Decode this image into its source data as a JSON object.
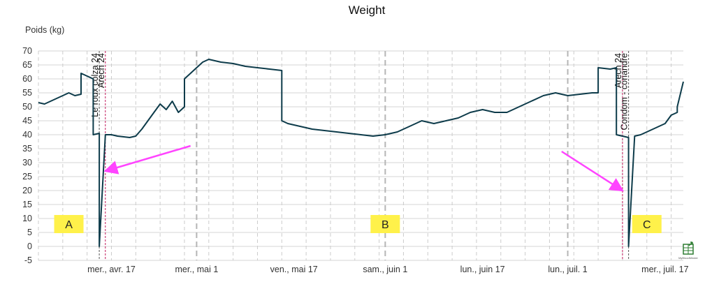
{
  "chart_data": {
    "type": "line",
    "title": "Weight",
    "ylabel": "Poids (kg)",
    "xlabel": "",
    "ylim": [
      -5,
      70
    ],
    "yticks": [
      -5,
      0,
      5,
      10,
      15,
      20,
      25,
      30,
      35,
      40,
      45,
      50,
      55,
      60,
      65,
      70
    ],
    "xlim": [
      "2024-04-05",
      "2024-07-20"
    ],
    "xticks": [
      {
        "date": "2024-04-17",
        "label": "mer., avr. 17"
      },
      {
        "date": "2024-05-01",
        "label": "mer., mai 1"
      },
      {
        "date": "2024-05-17",
        "label": "ven., mai 17"
      },
      {
        "date": "2024-06-01",
        "label": "sam., juin 1"
      },
      {
        "date": "2024-06-17",
        "label": "lun., juin 17"
      },
      {
        "date": "2024-07-01",
        "label": "lun., juil. 1"
      },
      {
        "date": "2024-07-17",
        "label": "mer., juil. 17"
      }
    ],
    "grid": true,
    "series_color": "#0d3b4a",
    "series": [
      {
        "x": [
          "2024-04-05",
          "2024-04-06",
          "2024-04-07",
          "2024-04-08",
          "2024-04-09",
          "2024-04-10",
          "2024-04-11",
          "2024-04-12",
          "2024-04-12",
          "2024-04-13",
          "2024-04-14",
          "2024-04-14",
          "2024-04-15",
          "2024-04-15",
          "2024-04-16",
          "2024-04-17",
          "2024-04-18",
          "2024-04-20",
          "2024-04-21",
          "2024-04-22",
          "2024-04-23",
          "2024-04-24",
          "2024-04-25",
          "2024-04-26",
          "2024-04-27",
          "2024-04-28",
          "2024-04-29",
          "2024-04-29",
          "2024-04-30",
          "2024-05-01",
          "2024-05-02",
          "2024-05-03",
          "2024-05-05",
          "2024-05-07",
          "2024-05-09",
          "2024-05-11",
          "2024-05-13",
          "2024-05-15",
          "2024-05-15",
          "2024-05-16",
          "2024-05-18",
          "2024-05-20",
          "2024-05-22",
          "2024-05-24",
          "2024-05-26",
          "2024-05-28",
          "2024-05-30",
          "2024-06-01",
          "2024-06-03",
          "2024-06-05",
          "2024-06-07",
          "2024-06-09",
          "2024-06-11",
          "2024-06-13",
          "2024-06-15",
          "2024-06-17",
          "2024-06-19",
          "2024-06-21",
          "2024-06-23",
          "2024-06-25",
          "2024-06-27",
          "2024-06-29",
          "2024-07-01",
          "2024-07-03",
          "2024-07-05",
          "2024-07-06",
          "2024-07-06",
          "2024-07-08",
          "2024-07-09",
          "2024-07-09",
          "2024-07-10",
          "2024-07-11",
          "2024-07-11",
          "2024-07-12",
          "2024-07-13",
          "2024-07-15",
          "2024-07-17",
          "2024-07-18",
          "2024-07-19",
          "2024-07-19",
          "2024-07-20"
        ],
        "y": [
          51.5,
          51,
          52,
          53,
          54,
          55,
          54,
          54.5,
          62,
          61,
          60,
          40,
          40.5,
          0,
          40,
          40,
          39.5,
          39,
          39.5,
          42,
          45,
          48,
          51,
          49,
          52,
          48,
          50,
          60,
          62,
          64,
          66,
          67,
          66,
          65.5,
          64.5,
          64,
          63.5,
          63,
          45,
          44,
          43,
          42,
          41.5,
          41,
          40.5,
          40,
          39.5,
          40,
          41,
          43,
          45,
          44,
          45,
          46,
          48,
          49,
          48,
          48,
          50,
          52,
          54,
          55,
          54,
          54.5,
          55,
          55,
          64,
          63.5,
          64,
          40,
          39.5,
          39,
          0,
          39.5,
          40,
          42,
          44,
          47,
          48,
          50,
          59
        ]
      }
    ],
    "event_markers": [
      {
        "date": "2024-04-15",
        "label": "Le roux colza 24",
        "color": "#555555"
      },
      {
        "date": "2024-04-16",
        "label": "Arech 24",
        "color": "#c2185b"
      },
      {
        "date": "2024-07-10",
        "label": "Arech 24",
        "color": "#c2185b"
      },
      {
        "date": "2024-07-11",
        "label": "Condom - coriandre",
        "color": "#555555"
      }
    ],
    "region_labels": [
      {
        "text": "A",
        "x": "2024-04-10",
        "y": 8
      },
      {
        "text": "B",
        "x": "2024-06-01",
        "y": 8
      },
      {
        "text": "C",
        "x": "2024-07-14",
        "y": 8
      }
    ],
    "region_label_color": "#fff14a",
    "arrow_color": "#ff44ff",
    "arrows": [
      {
        "from": [
          "2024-04-30",
          36
        ],
        "to": [
          "2024-04-16",
          27
        ]
      },
      {
        "from": [
          "2024-06-30",
          34
        ],
        "to": [
          "2024-07-10",
          20
        ]
      }
    ],
    "watermark_text": "MyBloodMinder",
    "watermark_color": "#2e7d32"
  }
}
